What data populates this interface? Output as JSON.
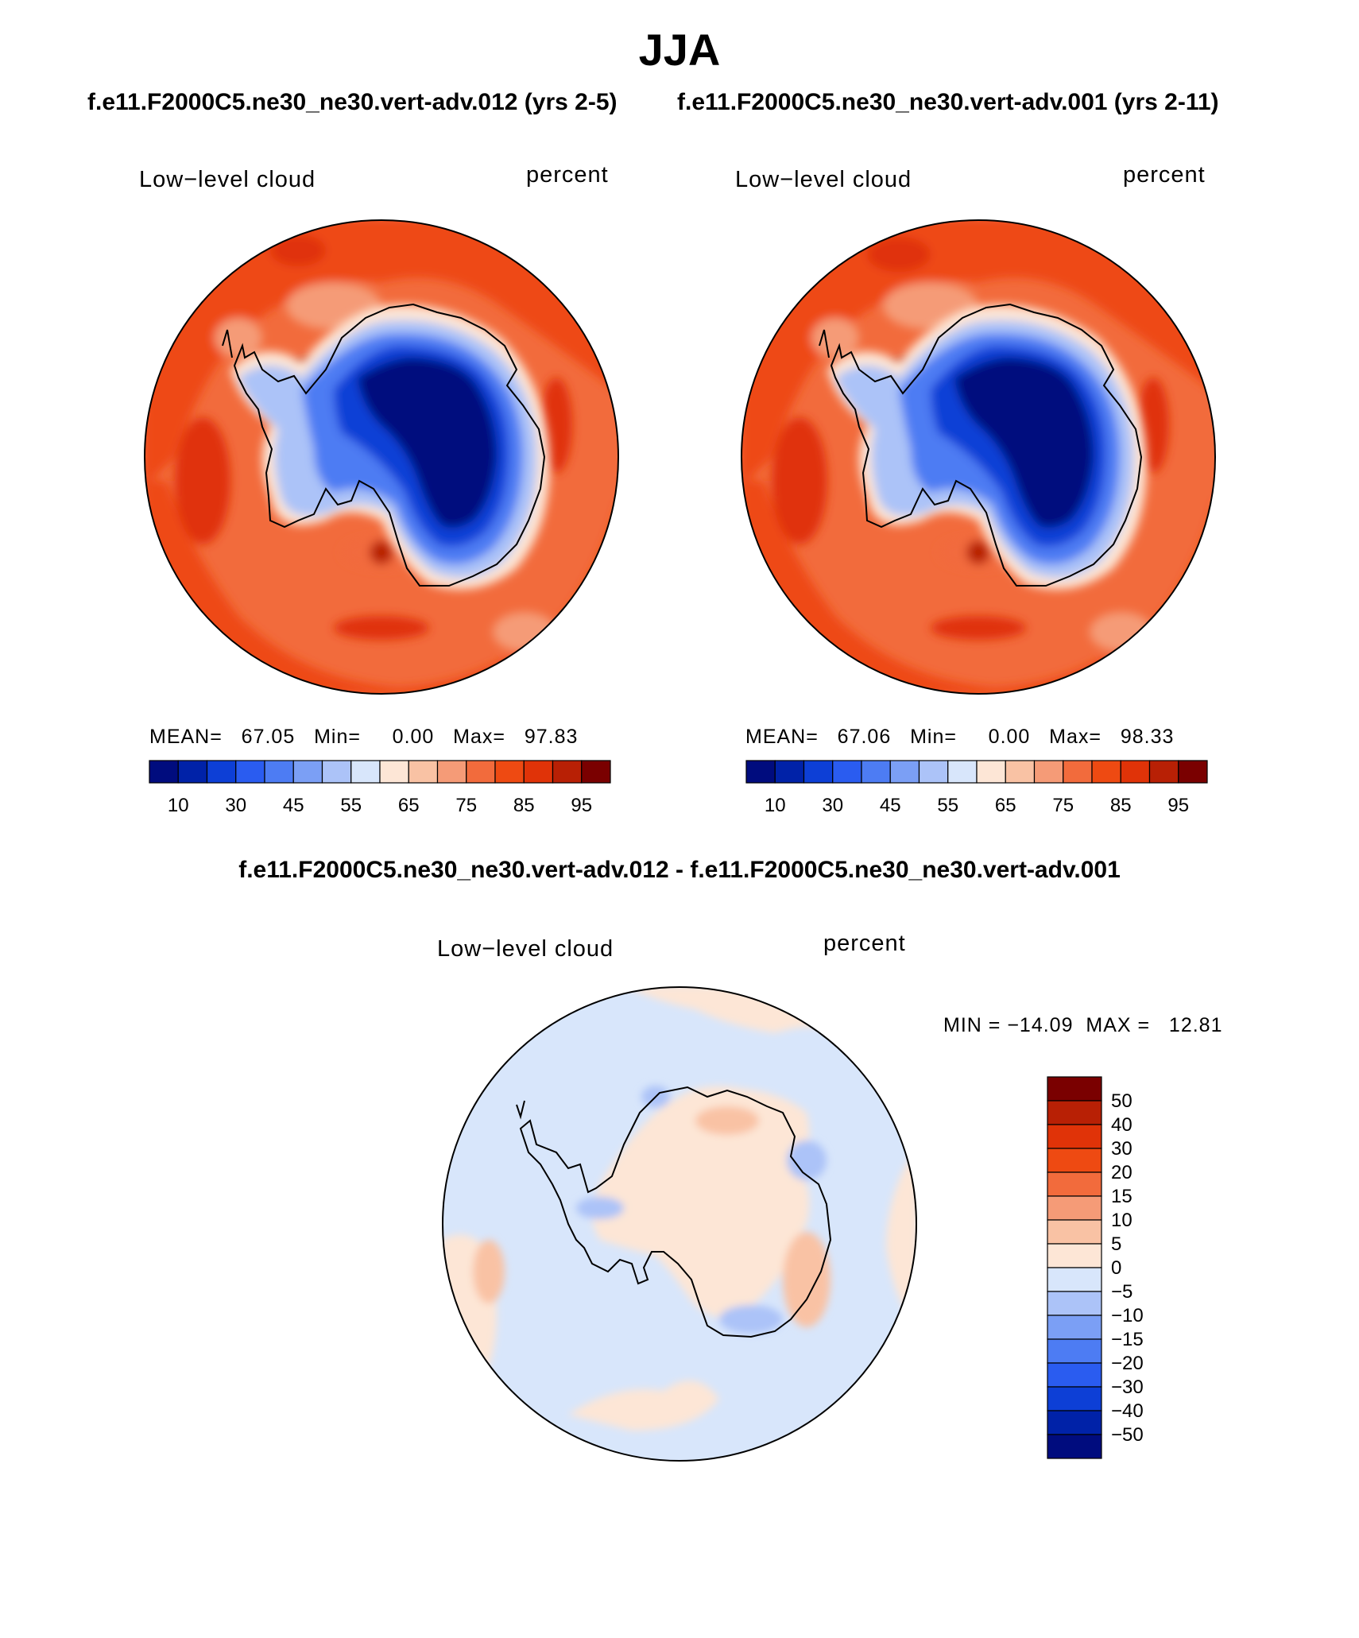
{
  "title": "JJA",
  "subtitles": {
    "left": "f.e11.F2000C5.ne30_ne30.vert-adv.012 (yrs 2-5)",
    "right": "f.e11.F2000C5.ne30_ne30.vert-adv.001 (yrs 2-11)"
  },
  "diff_title": "f.e11.F2000C5.ne30_ne30.vert-adv.012 - f.e11.F2000C5.ne30_ne30.vert-adv.001",
  "panels": [
    {
      "variable": "Low−level cloud",
      "units": "percent",
      "stats": "MEAN=   67.05   Min=     0.00   Max=   97.83"
    },
    {
      "variable": "Low−level cloud",
      "units": "percent",
      "stats": "MEAN=   67.06   Min=     0.00   Max=   98.33"
    }
  ],
  "diff_panel": {
    "variable": "Low−level cloud",
    "units": "percent",
    "stats": "MIN = −14.09  MAX =   12.81"
  },
  "colorbar_abs": {
    "colors": [
      "#000c7e",
      "#0022a8",
      "#0d3fd6",
      "#2a5cf0",
      "#4d7cf3",
      "#7b9ff5",
      "#acc3f8",
      "#d8e6fb",
      "#fde6d6",
      "#f9c2a4",
      "#f59b77",
      "#f26b3c",
      "#ee4a12",
      "#e03308",
      "#b82005",
      "#7a0000"
    ],
    "tick_labels": [
      "10",
      "30",
      "45",
      "55",
      "65",
      "75",
      "85",
      "95"
    ]
  },
  "colorbar_diff": {
    "colors": [
      "#7a0000",
      "#b82005",
      "#e03308",
      "#ee4a12",
      "#f26b3c",
      "#f59b77",
      "#f9c2a4",
      "#fde6d6",
      "#d8e6fb",
      "#acc3f8",
      "#7b9ff5",
      "#4d7cf3",
      "#2a5cf0",
      "#0d3fd6",
      "#0022a8",
      "#000c7e"
    ],
    "tick_labels": [
      "50",
      "40",
      "30",
      "20",
      "15",
      "10",
      "5",
      "0",
      "−5",
      "−10",
      "−15",
      "−20",
      "−30",
      "−40",
      "−50"
    ]
  },
  "map_colors": {
    "ocean_high": "#ee4a12",
    "ocean_mid": "#f26b3c",
    "ocean_peak": "#e03308",
    "ocean_max": "#b82005",
    "ice_edge": "#fde6d6",
    "ice_light": "#acc3f8",
    "ice_mid": "#4d7cf3",
    "ice_deep": "#0d3fd6",
    "plateau": "#000c7e",
    "diff_neg": "#d8e6fb",
    "diff_pos": "#fde6d6",
    "diff_neg2": "#acc3f8",
    "diff_pos2": "#f9c2a4"
  }
}
